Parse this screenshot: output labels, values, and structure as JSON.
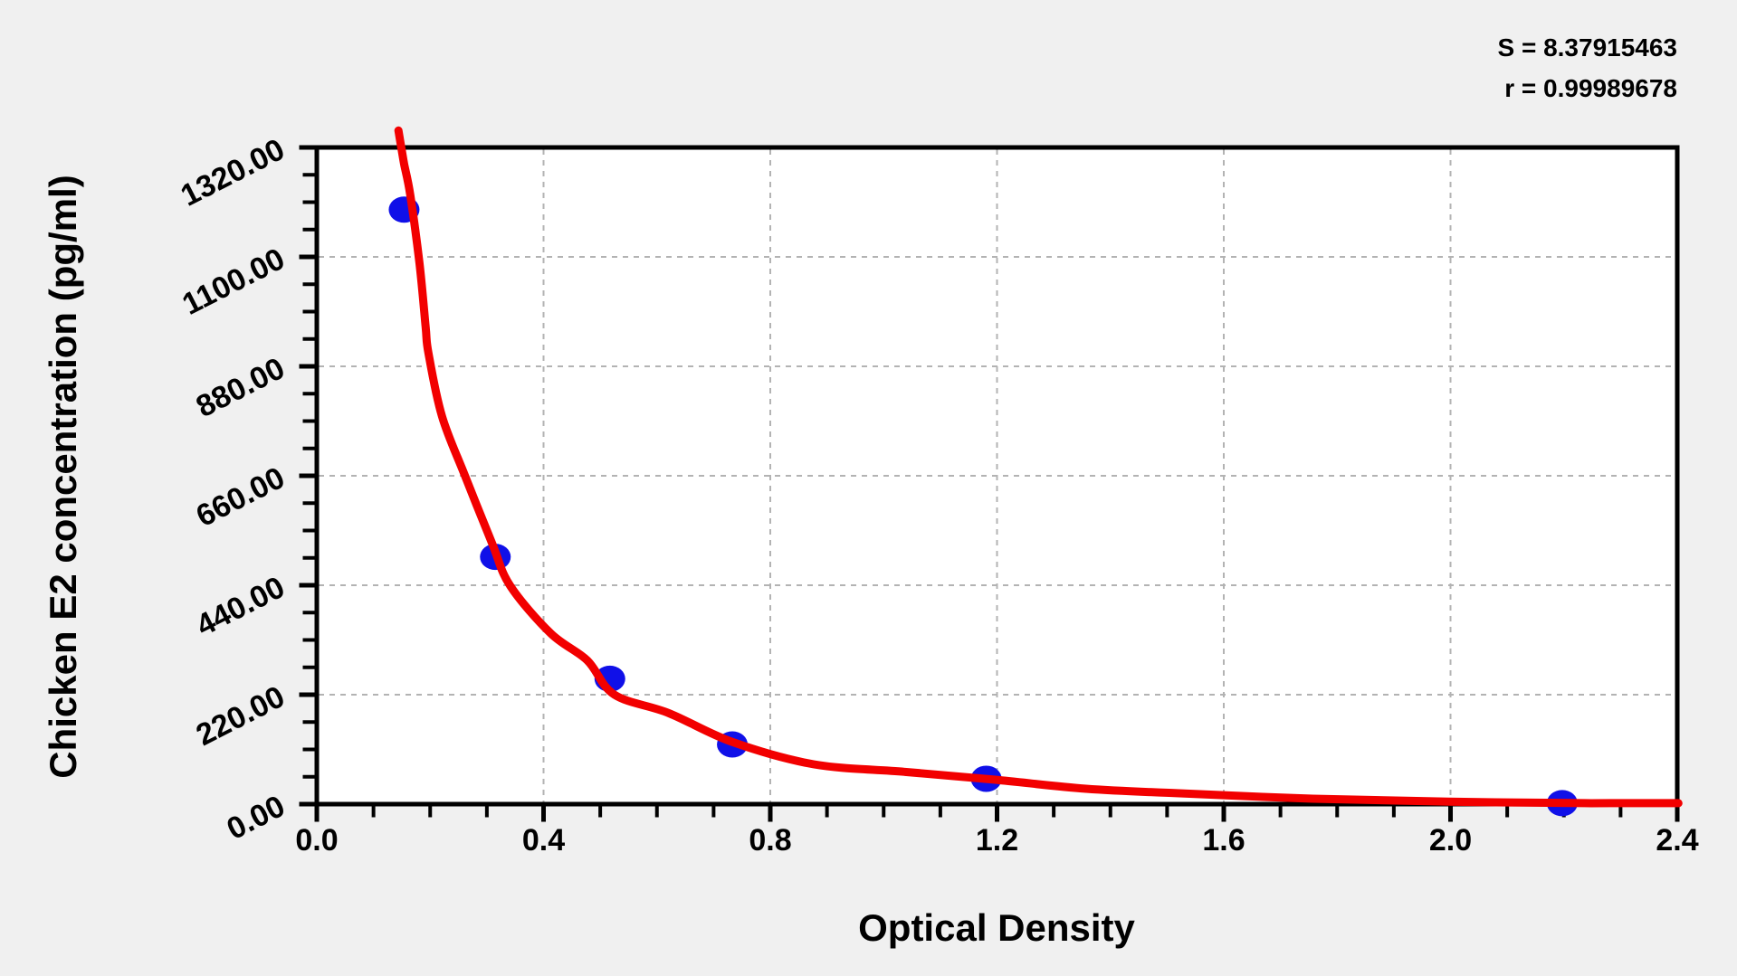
{
  "stats": {
    "s_line": "S = 8.37915463",
    "r_line": "r = 0.99989678"
  },
  "chart_data": {
    "type": "scatter",
    "title": "",
    "xlabel": "Optical Density",
    "ylabel": "Chicken E2 concentration (pg/ml)",
    "xlim": [
      0,
      2.4
    ],
    "ylim": [
      0,
      1320
    ],
    "x_tick_values": [
      0,
      0.4,
      0.8,
      1.2,
      1.6,
      2.0,
      2.4
    ],
    "x_tick_labels": [
      "0.0",
      "0.4",
      "0.8",
      "1.2",
      "1.6",
      "2.0",
      "2.4"
    ],
    "y_tick_values": [
      0,
      220,
      440,
      660,
      880,
      1100,
      1320
    ],
    "y_tick_labels": [
      "0.00",
      "220.00",
      "440.00",
      "660.00",
      "880.00",
      "1100.00",
      "1320.00"
    ],
    "x_minor_step": 0.1,
    "y_minor_step": 55,
    "grid": {
      "on": true,
      "style": "dashed",
      "color": "#b3b3b3",
      "on_major_ticks_only": true
    },
    "legend": null,
    "fit_stats": {
      "S": 8.37915463,
      "r": 0.99989678
    },
    "series": [
      {
        "name": "standard-points",
        "type": "scatter",
        "color": "#1010e8",
        "x": [
          0.154,
          0.315,
          0.517,
          0.733,
          1.181,
          2.197
        ],
        "y": [
          1195,
          497,
          252,
          120,
          51,
          2
        ]
      },
      {
        "name": "fitted-standard-curve",
        "type": "line",
        "color": "#f20000",
        "x": [
          0.144,
          0.149,
          0.154,
          0.165,
          0.181,
          0.192,
          0.197,
          0.221,
          0.261,
          0.309,
          0.341,
          0.413,
          0.477,
          0.525,
          0.621,
          0.733,
          0.877,
          1.037,
          1.197,
          1.357,
          1.517,
          1.757,
          1.997,
          2.237,
          2.402
        ],
        "y": [
          1354,
          1320,
          1287,
          1224,
          1088,
          960,
          906,
          779,
          661,
          525,
          439,
          343,
          289,
          220,
          183,
          125,
          80,
          65,
          49,
          31,
          22,
          11,
          5,
          2,
          2
        ]
      }
    ],
    "colors": {
      "page_background": "#f0f0f0",
      "plot_background": "#ffffff",
      "axis": "#000000",
      "point": "#1010e8",
      "curve": "#f20000",
      "grid": "#b3b3b3"
    }
  }
}
